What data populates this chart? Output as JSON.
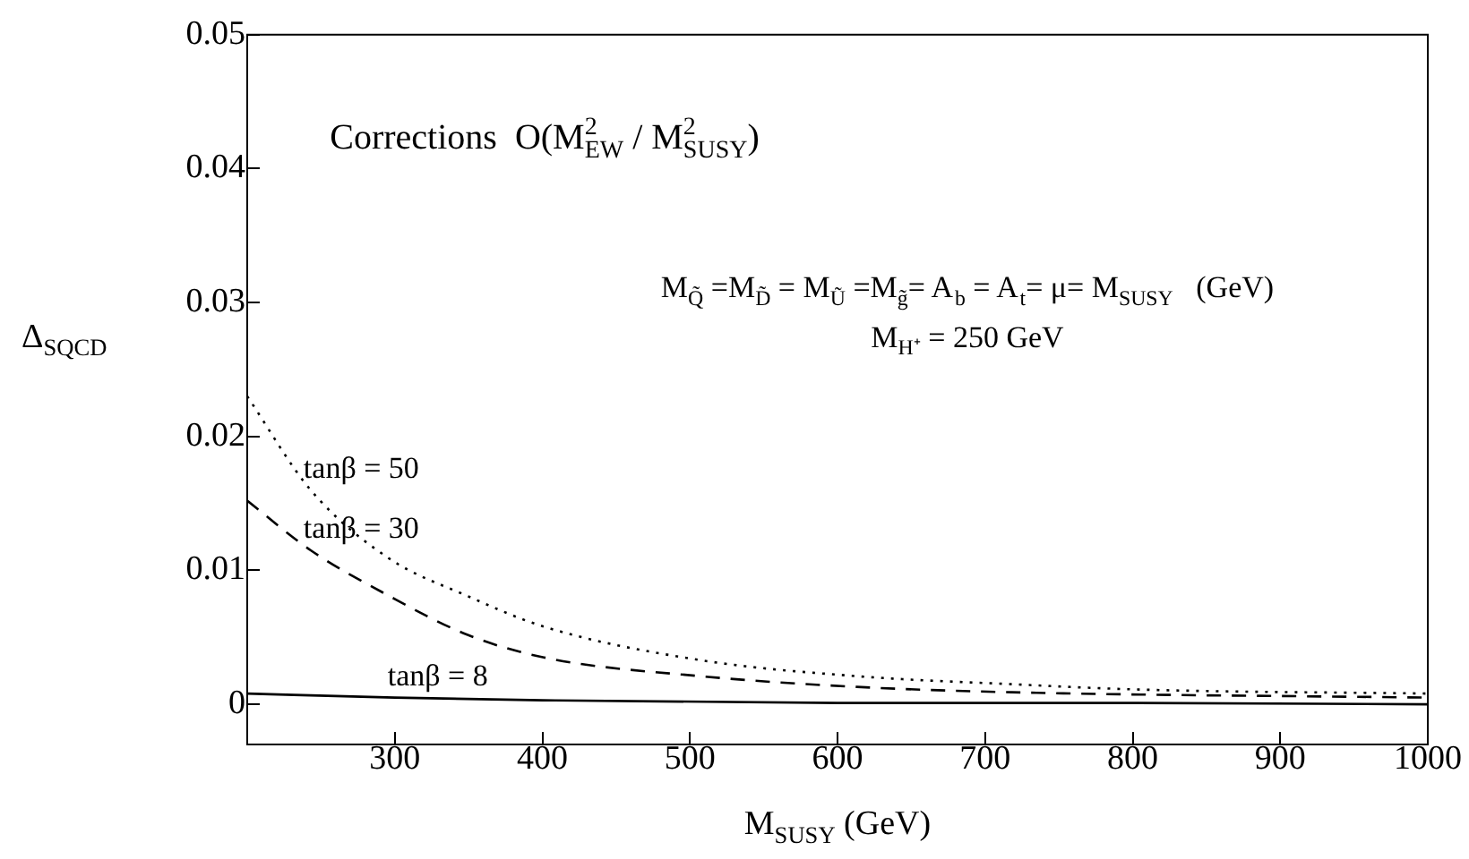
{
  "chart_data": {
    "type": "line",
    "xlabel": "M$_{SUSY}$ (GeV)",
    "ylabel": "Δ$_{SQCD}$",
    "annotations": [
      "Corrections  O(M$^{2}$$_{EW}$ / M$^{2}$$_{SUSY}$)",
      "M$_{Q̃}$ =M$_{D̃}$ = M$_{Ũ}$ =M$_{g̃}$= A$_{b}$ = A$_{t}$= μ= M$_{SUSY}$   (GeV)",
      "M$_{H⁺}$ = 250 GeV"
    ],
    "series": [
      {
        "name": "tanβ = 50",
        "color": "#000000",
        "line_style": "dotted",
        "x": [
          200,
          243,
          296,
          349,
          401,
          507,
          613,
          718,
          805,
          1000
        ],
        "values": [
          0.023,
          0.016,
          0.0109,
          0.0081,
          0.0058,
          0.0033,
          0.0021,
          0.0015,
          0.0011,
          0.0008
        ]
      },
      {
        "name": "tanβ = 30",
        "color": "#000000",
        "line_style": "dashed",
        "x": [
          200,
          243,
          296,
          349,
          401,
          507,
          613,
          718,
          1000
        ],
        "values": [
          0.0152,
          0.0115,
          0.0081,
          0.0052,
          0.0035,
          0.0021,
          0.0013,
          0.0009,
          0.0005
        ]
      },
      {
        "name": "tanβ = 8",
        "color": "#000000",
        "line_style": "solid",
        "x": [
          200,
          300,
          400,
          600,
          800,
          1000
        ],
        "values": [
          0.0008,
          0.0005,
          0.0003,
          0.0001,
          0.0001,
          0
        ]
      }
    ],
    "xlim": [
      200,
      1000
    ],
    "xticks": [
      300,
      400,
      500,
      600,
      700,
      800,
      900,
      1000
    ],
    "ylim": [
      -0.003,
      0.05
    ],
    "yticks": [
      0,
      0.01,
      0.02,
      0.03,
      0.04,
      0.05
    ],
    "grid": false,
    "legend": false,
    "marker": "none"
  }
}
